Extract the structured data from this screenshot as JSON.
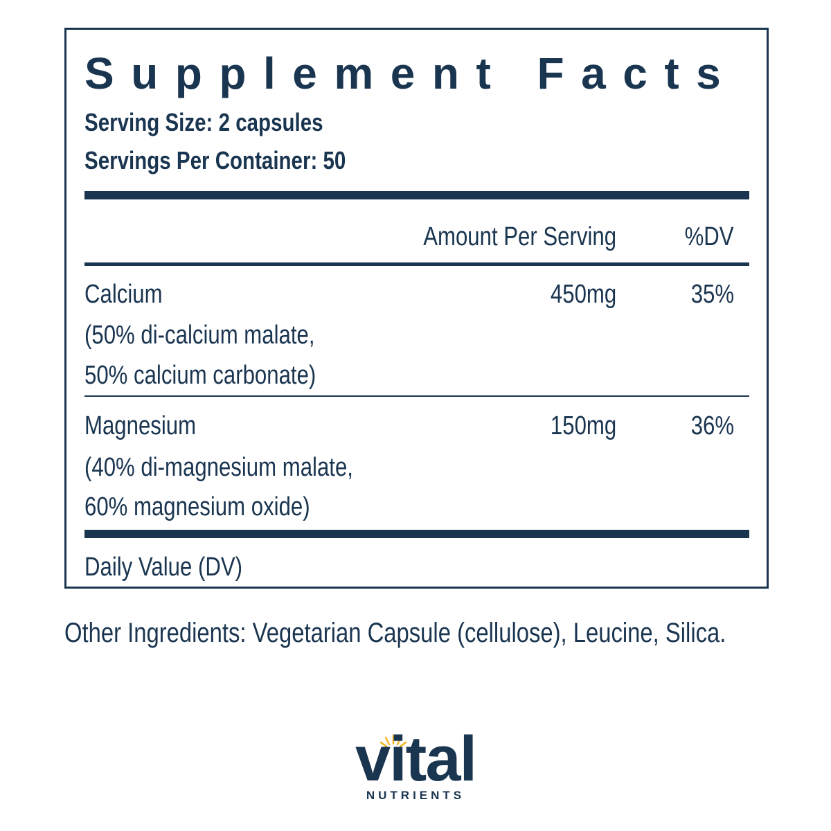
{
  "title": "Supplement Facts",
  "serving_size": "Serving Size: 2 capsules",
  "servings_per_container": "Servings Per Container: 50",
  "table": {
    "header": [
      "Amount Per Serving",
      "%DV"
    ],
    "rows": [
      {
        "name": "Calcium",
        "detail": [
          "(50% di-calcium malate,",
          "50% calcium carbonate)"
        ],
        "amount": "450mg",
        "dv": "35%"
      },
      {
        "name": "Magnesium",
        "detail": [
          "(40% di-magnesium malate,",
          "60% magnesium oxide)"
        ],
        "amount": "150mg",
        "dv": "36%"
      }
    ]
  },
  "footnote": "Daily Value (DV)",
  "other_ingredients": "Other Ingredients: Vegetarian Capsule (cellulose), Leucine, Silica.",
  "logo": {
    "name": "vital",
    "subtitle": "NUTRIENTS"
  }
}
